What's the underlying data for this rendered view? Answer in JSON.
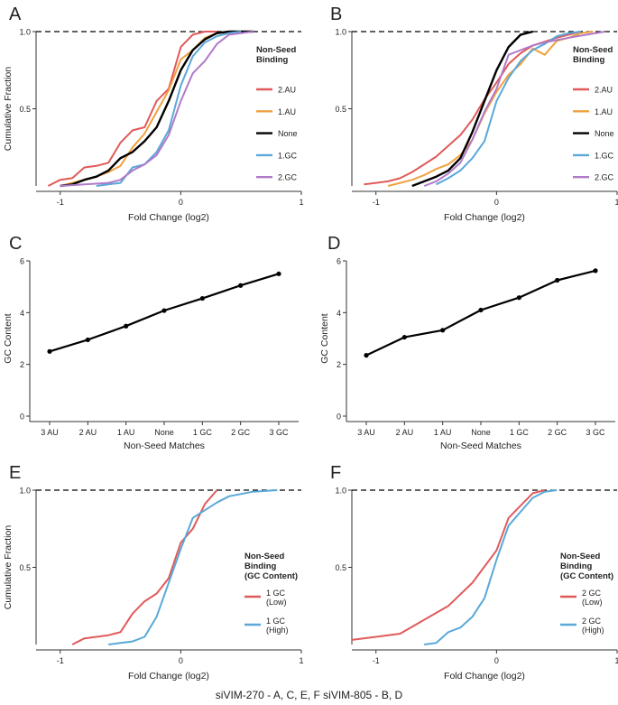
{
  "caption": "siVIM-270 - A, C, E, F     siVIM-805 - B, D",
  "chart_data": [
    {
      "id": "A",
      "type": "line",
      "panel_label": "A",
      "xlabel": "Fold Change (log2)",
      "ylabel": "Cumulative Fraction",
      "xlim": [
        -1.2,
        1.0
      ],
      "ylim": [
        0,
        1.0
      ],
      "xticks": [
        -1,
        0,
        1
      ],
      "xtick_labels": [
        "-1",
        "0",
        "1"
      ],
      "yticks": [
        0.5,
        1.0
      ],
      "ytick_labels": [
        "0.5",
        "1.0"
      ],
      "legend_title": "Non-Seed\nBinding",
      "series": [
        {
          "name": "2.AU",
          "color": "#e05a5a",
          "x": [
            -1.1,
            -1.0,
            -0.9,
            -0.8,
            -0.7,
            -0.6,
            -0.5,
            -0.4,
            -0.3,
            -0.2,
            -0.1,
            0.0,
            0.1,
            0.2,
            0.3
          ],
          "y": [
            0.0,
            0.04,
            0.05,
            0.12,
            0.13,
            0.15,
            0.28,
            0.36,
            0.38,
            0.55,
            0.63,
            0.9,
            0.98,
            1.0,
            1.0
          ]
        },
        {
          "name": "1.AU",
          "color": "#f0a040",
          "x": [
            -1.0,
            -0.9,
            -0.8,
            -0.7,
            -0.6,
            -0.5,
            -0.4,
            -0.3,
            -0.2,
            -0.1,
            0.0,
            0.1,
            0.2,
            0.3,
            0.5
          ],
          "y": [
            0.0,
            0.02,
            0.04,
            0.06,
            0.09,
            0.13,
            0.25,
            0.34,
            0.48,
            0.62,
            0.82,
            0.88,
            0.96,
            0.99,
            1.0
          ]
        },
        {
          "name": "None",
          "color": "#000000",
          "x": [
            -1.0,
            -0.9,
            -0.8,
            -0.7,
            -0.6,
            -0.5,
            -0.4,
            -0.3,
            -0.2,
            -0.1,
            0.0,
            0.1,
            0.2,
            0.3,
            0.4,
            0.6
          ],
          "y": [
            0.0,
            0.01,
            0.04,
            0.06,
            0.1,
            0.18,
            0.22,
            0.29,
            0.38,
            0.55,
            0.75,
            0.88,
            0.95,
            0.99,
            1.0,
            1.0
          ]
        },
        {
          "name": "1.GC",
          "color": "#5aa8d8",
          "x": [
            -0.7,
            -0.6,
            -0.5,
            -0.4,
            -0.3,
            -0.2,
            -0.1,
            0.0,
            0.1,
            0.2,
            0.3,
            0.4,
            0.5
          ],
          "y": [
            0.0,
            0.01,
            0.02,
            0.12,
            0.14,
            0.22,
            0.36,
            0.65,
            0.84,
            0.93,
            0.97,
            0.99,
            1.0
          ]
        },
        {
          "name": "2.GC",
          "color": "#b07ac8",
          "x": [
            -1.0,
            -0.8,
            -0.6,
            -0.5,
            -0.4,
            -0.3,
            -0.2,
            -0.1,
            0.0,
            0.1,
            0.2,
            0.3,
            0.4,
            0.6
          ],
          "y": [
            0.0,
            0.01,
            0.02,
            0.04,
            0.1,
            0.14,
            0.2,
            0.33,
            0.55,
            0.73,
            0.81,
            0.92,
            0.98,
            1.0
          ]
        }
      ]
    },
    {
      "id": "B",
      "type": "line",
      "panel_label": "B",
      "xlabel": "Fold Change (log2)",
      "ylabel": "",
      "xlim": [
        -1.2,
        1.0
      ],
      "ylim": [
        0,
        1.0
      ],
      "xticks": [
        -1,
        0,
        1
      ],
      "xtick_labels": [
        "-1",
        "0",
        "1"
      ],
      "yticks": [
        0.5,
        1.0
      ],
      "ytick_labels": [
        "0.5",
        "1.0"
      ],
      "legend_title": "Non-Seed\nBinding",
      "series": [
        {
          "name": "2.AU",
          "color": "#e05a5a",
          "x": [
            -1.1,
            -1.0,
            -0.9,
            -0.8,
            -0.7,
            -0.6,
            -0.5,
            -0.4,
            -0.3,
            -0.2,
            -0.1,
            0.0,
            0.1,
            0.2,
            0.3,
            0.5,
            0.6,
            0.7
          ],
          "y": [
            0.01,
            0.02,
            0.03,
            0.05,
            0.09,
            0.14,
            0.19,
            0.26,
            0.33,
            0.43,
            0.56,
            0.67,
            0.79,
            0.86,
            0.91,
            0.96,
            0.98,
            1.0
          ]
        },
        {
          "name": "1.AU",
          "color": "#f0a040",
          "x": [
            -0.9,
            -0.8,
            -0.7,
            -0.6,
            -0.5,
            -0.4,
            -0.3,
            -0.2,
            -0.1,
            0.0,
            0.1,
            0.2,
            0.3,
            0.4,
            0.5,
            0.6,
            0.7,
            0.8
          ],
          "y": [
            0.0,
            0.02,
            0.04,
            0.07,
            0.11,
            0.14,
            0.2,
            0.3,
            0.47,
            0.61,
            0.72,
            0.79,
            0.89,
            0.85,
            0.94,
            0.96,
            0.99,
            1.0
          ]
        },
        {
          "name": "None",
          "color": "#000000",
          "x": [
            -0.7,
            -0.6,
            -0.5,
            -0.4,
            -0.3,
            -0.2,
            -0.1,
            0.0,
            0.1,
            0.2,
            0.3
          ],
          "y": [
            0.0,
            0.03,
            0.06,
            0.1,
            0.18,
            0.35,
            0.55,
            0.75,
            0.9,
            0.98,
            1.0
          ]
        },
        {
          "name": "1.GC",
          "color": "#5aa8d8",
          "x": [
            -0.5,
            -0.4,
            -0.3,
            -0.2,
            -0.1,
            0.0,
            0.1,
            0.2,
            0.3,
            0.4,
            0.5,
            0.6,
            0.7
          ],
          "y": [
            0.01,
            0.05,
            0.1,
            0.18,
            0.29,
            0.55,
            0.7,
            0.81,
            0.88,
            0.92,
            0.97,
            0.99,
            1.0
          ]
        },
        {
          "name": "2.GC",
          "color": "#b07ac8",
          "x": [
            -0.6,
            -0.5,
            -0.4,
            -0.3,
            -0.2,
            -0.1,
            0.0,
            0.1,
            0.2,
            0.3,
            0.4,
            0.6,
            0.9
          ],
          "y": [
            0.0,
            0.03,
            0.08,
            0.15,
            0.3,
            0.48,
            0.63,
            0.85,
            0.88,
            0.91,
            0.93,
            0.96,
            1.0
          ]
        }
      ]
    },
    {
      "id": "C",
      "type": "line",
      "panel_label": "C",
      "xlabel": "Non-Seed Matches",
      "ylabel": "GC Content",
      "categories": [
        "3 AU",
        "2 AU",
        "1 AU",
        "None",
        "1 GC",
        "2 GC",
        "3 GC"
      ],
      "values": [
        2.5,
        2.95,
        3.48,
        4.08,
        4.55,
        5.05,
        5.5
      ],
      "ylim": [
        0,
        6
      ],
      "yticks": [
        0,
        2,
        4,
        6
      ],
      "ytick_labels": [
        "0",
        "2",
        "4",
        "6"
      ]
    },
    {
      "id": "D",
      "type": "line",
      "panel_label": "D",
      "xlabel": "Non-Seed Matches",
      "ylabel": "GC Content",
      "categories": [
        "3 AU",
        "2 AU",
        "1 AU",
        "None",
        "1 GC",
        "2 GC",
        "3 GC"
      ],
      "values": [
        2.35,
        3.05,
        3.32,
        4.1,
        4.58,
        5.25,
        5.62
      ],
      "ylim": [
        0,
        6
      ],
      "yticks": [
        0,
        2,
        4,
        6
      ],
      "ytick_labels": [
        "0",
        "2",
        "4",
        "6"
      ]
    },
    {
      "id": "E",
      "type": "line",
      "panel_label": "E",
      "xlabel": "Fold Change (log2)",
      "ylabel": "Cumulative Fraction",
      "xlim": [
        -1.2,
        1.0
      ],
      "ylim": [
        0,
        1.0
      ],
      "xticks": [
        -1,
        0,
        1
      ],
      "xtick_labels": [
        "-1",
        "0",
        "1"
      ],
      "yticks": [
        0.5,
        1.0
      ],
      "ytick_labels": [
        "0.5",
        "1.0"
      ],
      "legend_title": "Non-Seed\nBinding\n(GC Content)",
      "series": [
        {
          "name": "1 GC\n(Low)",
          "color": "#e05a5a",
          "x": [
            -0.9,
            -0.8,
            -0.7,
            -0.6,
            -0.5,
            -0.4,
            -0.3,
            -0.2,
            -0.1,
            0.0,
            0.1,
            0.2,
            0.3
          ],
          "y": [
            0.0,
            0.04,
            0.05,
            0.06,
            0.08,
            0.2,
            0.28,
            0.33,
            0.43,
            0.66,
            0.75,
            0.91,
            1.0
          ]
        },
        {
          "name": "1 GC\n(High)",
          "color": "#5aa8d8",
          "x": [
            -0.6,
            -0.5,
            -0.4,
            -0.3,
            -0.2,
            -0.1,
            0.0,
            0.1,
            0.2,
            0.3,
            0.4,
            0.6,
            0.8
          ],
          "y": [
            0.0,
            0.01,
            0.02,
            0.05,
            0.18,
            0.4,
            0.62,
            0.82,
            0.87,
            0.92,
            0.96,
            0.99,
            1.0
          ]
        }
      ]
    },
    {
      "id": "F",
      "type": "line",
      "panel_label": "F",
      "xlabel": "Fold Change (log2)",
      "ylabel": "",
      "xlim": [
        -1.2,
        1.0
      ],
      "ylim": [
        0,
        1.0
      ],
      "xticks": [
        -1,
        0,
        1
      ],
      "xtick_labels": [
        "-1",
        "0",
        "1"
      ],
      "yticks": [
        0.5,
        1.0
      ],
      "ytick_labels": [
        "0.5",
        "1.0"
      ],
      "legend_title": "Non-Seed\nBinding\n(GC Content)",
      "series": [
        {
          "name": "2 GC\n(Low)",
          "color": "#e05a5a",
          "x": [
            -1.2,
            -1.0,
            -0.8,
            -0.6,
            -0.4,
            -0.2,
            0.0,
            0.1,
            0.2,
            0.3,
            0.4
          ],
          "y": [
            0.03,
            0.05,
            0.07,
            0.16,
            0.25,
            0.4,
            0.61,
            0.82,
            0.9,
            0.98,
            1.0
          ]
        },
        {
          "name": "2 GC\n(High)",
          "color": "#5aa8d8",
          "x": [
            -0.6,
            -0.5,
            -0.4,
            -0.3,
            -0.2,
            -0.1,
            0.0,
            0.1,
            0.2,
            0.3,
            0.4,
            0.5
          ],
          "y": [
            0.0,
            0.01,
            0.08,
            0.11,
            0.18,
            0.3,
            0.55,
            0.77,
            0.86,
            0.95,
            0.99,
            1.0
          ]
        }
      ]
    }
  ]
}
